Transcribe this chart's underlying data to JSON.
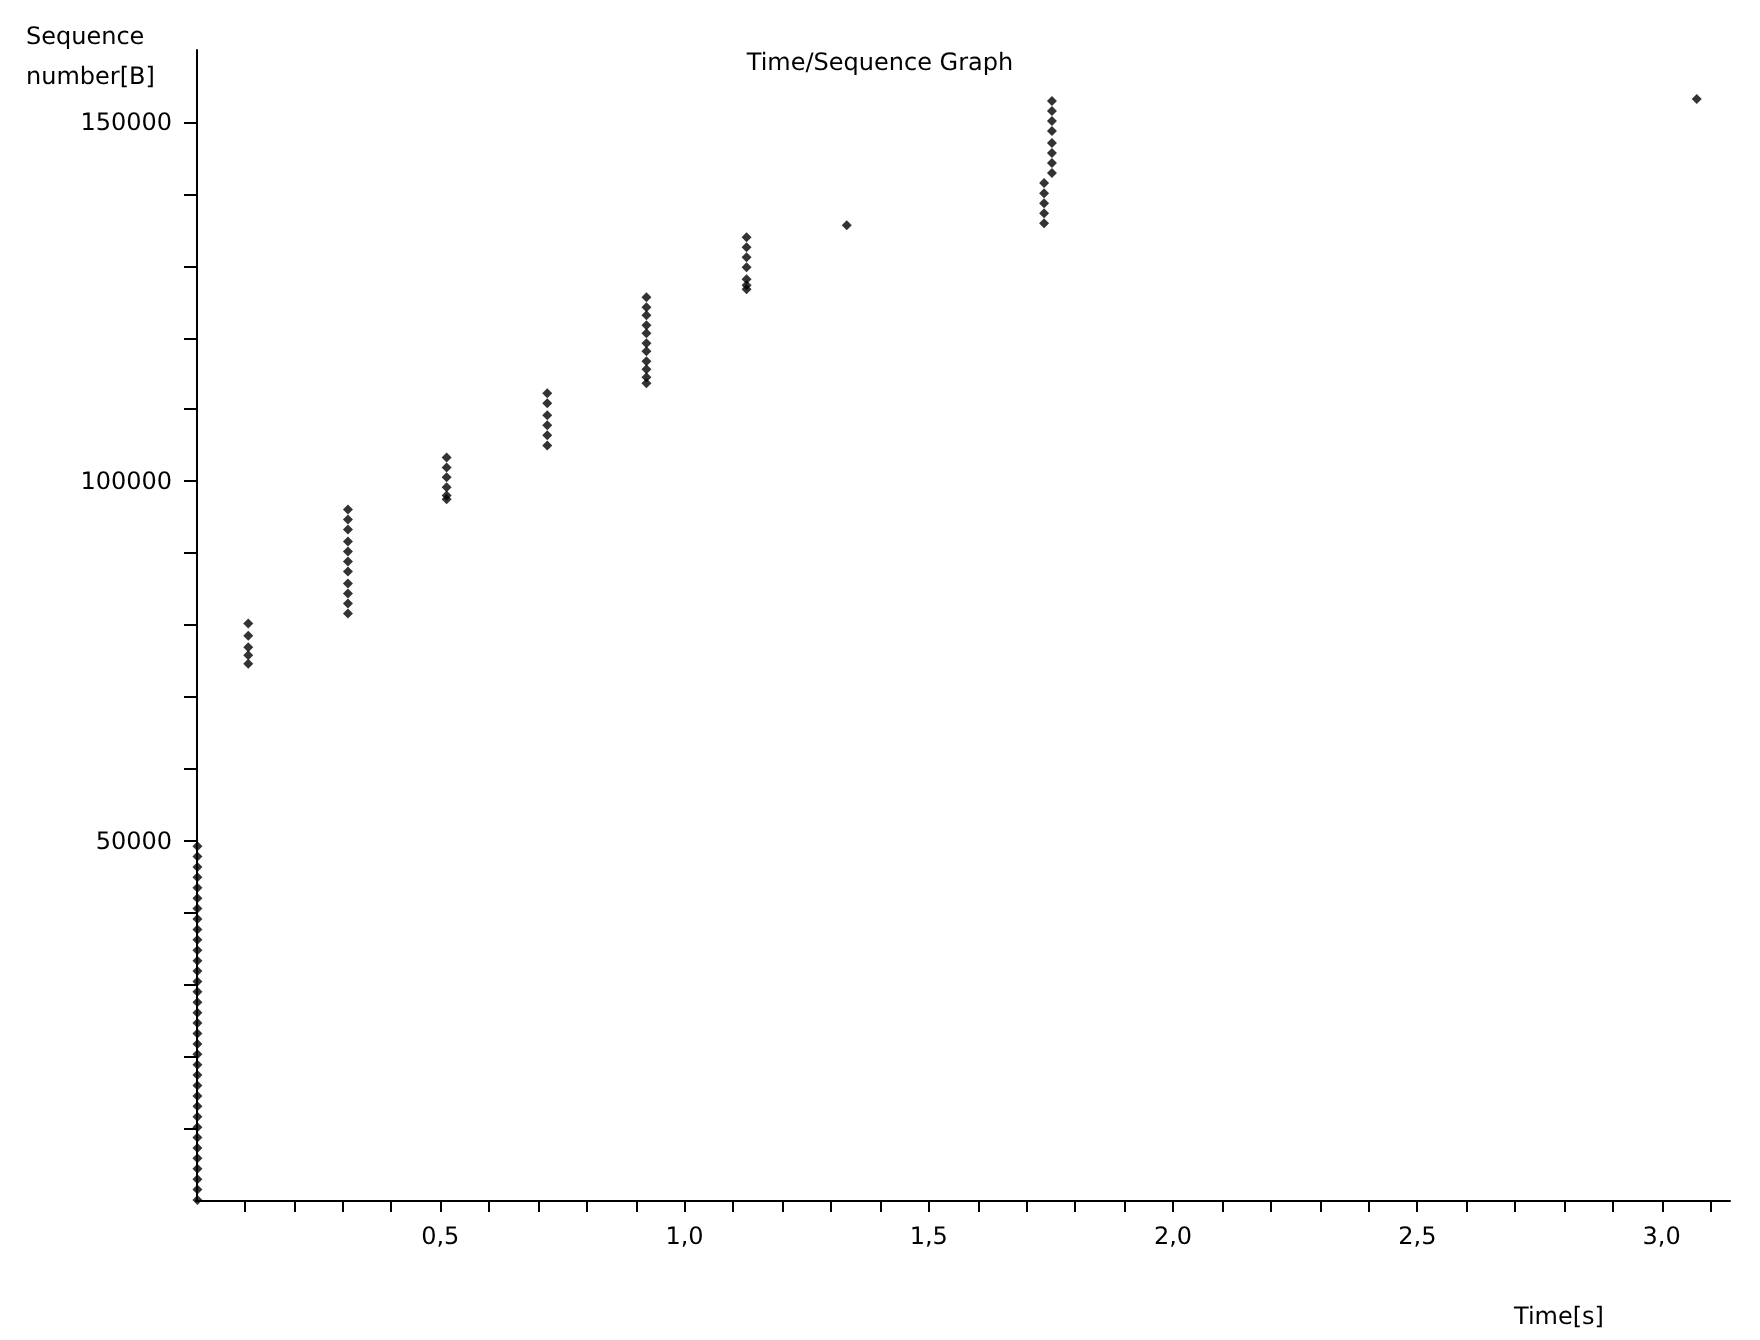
{
  "chart_data": {
    "type": "scatter",
    "title": "Time/Sequence Graph",
    "xlabel": "Time[s]",
    "ylabel": "Sequence number[B]",
    "x": [
      0.003,
      0.003,
      0.003,
      0.003,
      0.003,
      0.003,
      0.003,
      0.003,
      0.003,
      0.003,
      0.003,
      0.003,
      0.003,
      0.003,
      0.003,
      0.003,
      0.003,
      0.003,
      0.003,
      0.003,
      0.003,
      0.003,
      0.003,
      0.003,
      0.003,
      0.003,
      0.003,
      0.003,
      0.003,
      0.003,
      0.003,
      0.003,
      0.003,
      0.003,
      0.003,
      0.107,
      0.107,
      0.107,
      0.107,
      0.107,
      0.311,
      0.311,
      0.311,
      0.311,
      0.311,
      0.311,
      0.311,
      0.311,
      0.311,
      0.311,
      0.311,
      0.513,
      0.513,
      0.513,
      0.513,
      0.513,
      0.513,
      0.719,
      0.719,
      0.719,
      0.719,
      0.719,
      0.719,
      0.922,
      0.922,
      0.922,
      0.922,
      0.922,
      0.922,
      0.922,
      0.922,
      0.922,
      0.922,
      0.922,
      1.127,
      1.127,
      1.127,
      1.127,
      1.127,
      1.127,
      1.127,
      1.332,
      1.736,
      1.736,
      1.736,
      1.736,
      1.736,
      1.752,
      1.752,
      1.752,
      1.752,
      1.752,
      1.752,
      1.752,
      1.752,
      3.072
    ],
    "values": [
      0,
      1448,
      2896,
      4344,
      5792,
      7240,
      8688,
      10136,
      11584,
      13032,
      14480,
      15928,
      17376,
      18824,
      20272,
      21720,
      23168,
      24616,
      26064,
      27512,
      28960,
      30408,
      31856,
      33304,
      34752,
      36200,
      37648,
      39096,
      40544,
      41992,
      43440,
      44888,
      46336,
      47784,
      49232,
      80200,
      78500,
      76900,
      75800,
      74600,
      96080,
      94690,
      93300,
      91630,
      90230,
      88840,
      87450,
      85780,
      84390,
      83000,
      81600,
      103320,
      101930,
      100540,
      99150,
      98030,
      97480,
      112240,
      110840,
      109170,
      107780,
      106390,
      104990,
      125600,
      124210,
      123100,
      121700,
      120590,
      119200,
      118080,
      116690,
      115580,
      114460,
      113630,
      133960,
      132570,
      131170,
      129780,
      128110,
      127270,
      126720,
      135630,
      141480,
      140080,
      138690,
      137300,
      135910,
      152900,
      151510,
      150120,
      148720,
      147050,
      145660,
      144270,
      142880,
      153180
    ],
    "color": "#000000",
    "marker": "diamond",
    "xlim": [
      0,
      3.14
    ],
    "ylim": [
      0,
      160000
    ],
    "xticks": [
      {
        "value": 0.1,
        "label": null
      },
      {
        "value": 0.2,
        "label": null
      },
      {
        "value": 0.3,
        "label": null
      },
      {
        "value": 0.4,
        "label": null
      },
      {
        "value": 0.5,
        "label": "0,5"
      },
      {
        "value": 0.6,
        "label": null
      },
      {
        "value": 0.7,
        "label": null
      },
      {
        "value": 0.8,
        "label": null
      },
      {
        "value": 0.9,
        "label": null
      },
      {
        "value": 1.0,
        "label": "1,0"
      },
      {
        "value": 1.1,
        "label": null
      },
      {
        "value": 1.2,
        "label": null
      },
      {
        "value": 1.3,
        "label": null
      },
      {
        "value": 1.4,
        "label": null
      },
      {
        "value": 1.5,
        "label": "1,5"
      },
      {
        "value": 1.6,
        "label": null
      },
      {
        "value": 1.7,
        "label": null
      },
      {
        "value": 1.8,
        "label": null
      },
      {
        "value": 1.9,
        "label": null
      },
      {
        "value": 2.0,
        "label": "2,0"
      },
      {
        "value": 2.1,
        "label": null
      },
      {
        "value": 2.2,
        "label": null
      },
      {
        "value": 2.3,
        "label": null
      },
      {
        "value": 2.4,
        "label": null
      },
      {
        "value": 2.5,
        "label": "2,5"
      },
      {
        "value": 2.6,
        "label": null
      },
      {
        "value": 2.7,
        "label": null
      },
      {
        "value": 2.8,
        "label": null
      },
      {
        "value": 2.9,
        "label": null
      },
      {
        "value": 3.0,
        "label": "3,0"
      },
      {
        "value": 3.1,
        "label": null
      }
    ],
    "yticks": [
      {
        "value": 10000,
        "label": null
      },
      {
        "value": 20000,
        "label": null
      },
      {
        "value": 30000,
        "label": null
      },
      {
        "value": 40000,
        "label": null
      },
      50000,
      {
        "value": 60000,
        "label": null
      },
      {
        "value": 70000,
        "label": null
      },
      {
        "value": 80000,
        "label": null
      },
      {
        "value": 90000,
        "label": null
      },
      100000,
      {
        "value": 110000,
        "label": null
      },
      {
        "value": 120000,
        "label": null
      },
      {
        "value": 130000,
        "label": null
      },
      {
        "value": 140000,
        "label": null
      },
      150000
    ]
  }
}
